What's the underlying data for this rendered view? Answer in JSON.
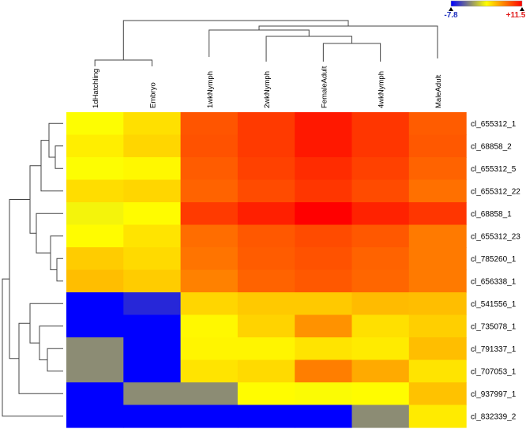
{
  "colors": {
    "low": "#0000ff",
    "mid": "#ffff00",
    "high": "#ff0000",
    "missing_gray": "#8c8c74"
  },
  "chart_data": {
    "type": "heatmap",
    "title": "",
    "color_scale": {
      "min": -7.8,
      "max": 11.5,
      "min_label": "-7.8",
      "max_label": "+11.5"
    },
    "columns": [
      "1dHatchling",
      "Embryo",
      "1wkNymph",
      "2wkNymph",
      "FemaleAdult",
      "4wkNymph",
      "MaleAdult"
    ],
    "rows": [
      "cl_655312_1",
      "cl_68858_2",
      "cl_655312_5",
      "cl_655312_22",
      "cl_68858_1",
      "cl_655312_23",
      "cl_785260_1",
      "cl_656338_1",
      "cl_541556_1",
      "cl_735078_1",
      "cl_791337_1",
      "cl_707053_1",
      "cl_937997_1",
      "cl_832339_2"
    ],
    "values": [
      [
        3.9,
        4.9,
        9.0,
        9.8,
        10.8,
        9.9,
        8.8
      ],
      [
        4.5,
        5.2,
        9.1,
        9.8,
        10.8,
        9.9,
        8.9
      ],
      [
        3.9,
        4.2,
        8.8,
        9.6,
        10.2,
        9.6,
        8.6
      ],
      [
        5.0,
        5.2,
        8.6,
        9.3,
        9.9,
        9.3,
        8.2
      ],
      [
        3.5,
        4.1,
        9.8,
        10.6,
        11.5,
        10.5,
        9.9
      ],
      [
        4.1,
        4.8,
        8.3,
        8.9,
        9.3,
        8.9,
        7.9
      ],
      [
        5.5,
        5.1,
        8.1,
        8.8,
        9.1,
        8.6,
        7.9
      ],
      [
        5.9,
        5.5,
        7.7,
        8.6,
        8.9,
        8.5,
        7.9
      ],
      [
        -7.8,
        -6.0,
        5.2,
        5.6,
        5.6,
        6.0,
        5.9
      ],
      [
        -7.8,
        -7.8,
        4.2,
        5.3,
        7.2,
        4.9,
        5.4
      ],
      [
        null,
        -7.8,
        4.3,
        4.3,
        4.8,
        4.6,
        5.9
      ],
      [
        null,
        -7.8,
        4.8,
        5.1,
        7.8,
        6.5,
        4.8
      ],
      [
        -7.8,
        null,
        null,
        4.1,
        3.8,
        4.1,
        5.8
      ],
      [
        -7.8,
        -7.8,
        -7.8,
        -7.8,
        -7.8,
        null,
        4.6
      ]
    ],
    "missing_value_color": "#8c8c74",
    "row_dendrogram": true,
    "column_dendrogram": true
  }
}
